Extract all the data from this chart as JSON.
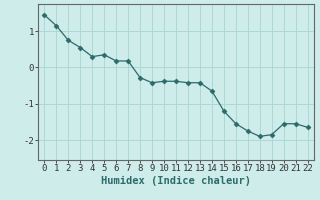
{
  "x": [
    0,
    1,
    2,
    3,
    4,
    5,
    6,
    7,
    8,
    9,
    10,
    11,
    12,
    13,
    14,
    15,
    16,
    17,
    18,
    19,
    20,
    21,
    22
  ],
  "y": [
    1.45,
    1.15,
    0.75,
    0.55,
    0.3,
    0.35,
    0.18,
    0.18,
    -0.28,
    -0.42,
    -0.38,
    -0.38,
    -0.42,
    -0.42,
    -0.65,
    -1.2,
    -1.55,
    -1.75,
    -1.9,
    -1.85,
    -1.55,
    -1.55,
    -1.65
  ],
  "line_color": "#2d6b6b",
  "marker": "D",
  "markersize": 2.5,
  "linewidth": 0.9,
  "background_color": "#ceecea",
  "grid_color": "#aed8d5",
  "axis_color": "#666666",
  "xlabel": "Humidex (Indice chaleur)",
  "xlabel_fontsize": 7.5,
  "tick_fontsize": 6.5,
  "yticks": [
    -2,
    -1,
    0,
    1
  ],
  "ylim": [
    -2.55,
    1.75
  ],
  "xlim": [
    -0.5,
    22.5
  ],
  "xticks": [
    0,
    1,
    2,
    3,
    4,
    5,
    6,
    7,
    8,
    9,
    10,
    11,
    12,
    13,
    14,
    15,
    16,
    17,
    18,
    19,
    20,
    21,
    22
  ]
}
